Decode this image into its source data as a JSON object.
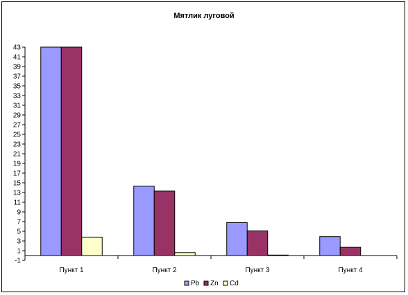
{
  "chart_data": {
    "type": "bar",
    "title": "Мятлик луговой",
    "xlabel": "",
    "ylabel": "",
    "categories": [
      "Пункт 1",
      "Пункт 2",
      "Пункт 3",
      "Пункт 4"
    ],
    "series": [
      {
        "name": "Pb",
        "values": [
          43,
          14.3,
          6.8,
          3.9
        ],
        "color": "#9999ff"
      },
      {
        "name": "Zn",
        "values": [
          43,
          13.3,
          5.1,
          1.7
        ],
        "color": "#993366"
      },
      {
        "name": "Cd",
        "values": [
          3.8,
          0.6,
          0.1,
          0
        ],
        "color": "#ffffcc"
      }
    ],
    "ylim": [
      -1,
      43
    ],
    "yticks": [
      "-1",
      "1",
      "3",
      "5",
      "7",
      "9",
      "11",
      "13",
      "15",
      "17",
      "19",
      "21",
      "23",
      "25",
      "27",
      "29",
      "31",
      "33",
      "35",
      "37",
      "39",
      "41",
      "43"
    ],
    "grid": false,
    "legend_position": "bottom"
  }
}
